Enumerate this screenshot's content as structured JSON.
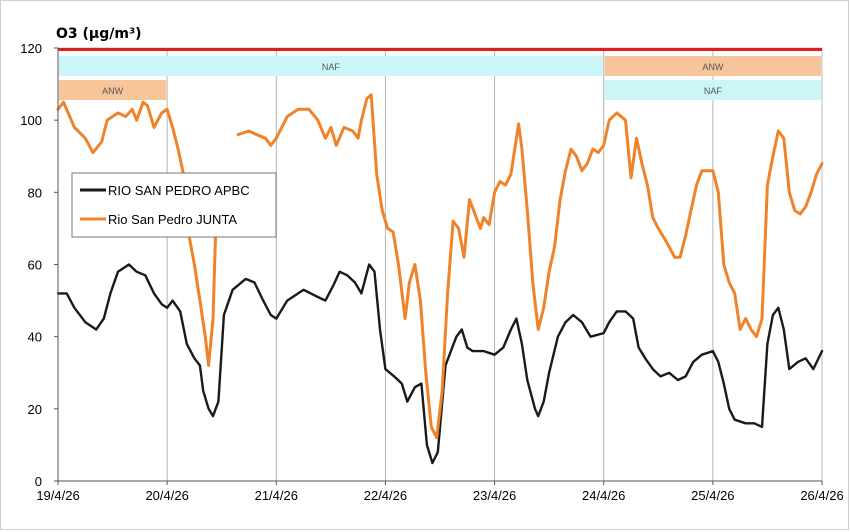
{
  "chart_data": {
    "type": "line",
    "title": "O3  (µg/m³)",
    "xlabel": "",
    "ylabel": "",
    "ylim": [
      0,
      120
    ],
    "yticks": [
      "0",
      "20",
      "40",
      "60",
      "80",
      "100",
      "120"
    ],
    "xticks": [
      "19/4/26",
      "20/4/26",
      "21/4/26",
      "22/4/26",
      "23/4/26",
      "24/4/26",
      "25/4/26",
      "26/4/26"
    ],
    "xlim": [
      0,
      7
    ],
    "grid": "vertical",
    "legend_position": "left",
    "series": [
      {
        "name": "RIO SAN PEDRO APBC",
        "color": "#1a1a1a",
        "points": [
          [
            0,
            52
          ],
          [
            0.08,
            52
          ],
          [
            0.15,
            48
          ],
          [
            0.25,
            44
          ],
          [
            0.35,
            42
          ],
          [
            0.42,
            45
          ],
          [
            0.48,
            52
          ],
          [
            0.55,
            58
          ],
          [
            0.65,
            60
          ],
          [
            0.72,
            58
          ],
          [
            0.8,
            57
          ],
          [
            0.88,
            52
          ],
          [
            0.95,
            49
          ],
          [
            1.0,
            48
          ],
          [
            1.05,
            50
          ],
          [
            1.12,
            47
          ],
          [
            1.18,
            38
          ],
          [
            1.25,
            34
          ],
          [
            1.3,
            32
          ],
          [
            1.33,
            25
          ],
          [
            1.38,
            20
          ],
          [
            1.42,
            18
          ],
          [
            1.47,
            22
          ],
          [
            1.52,
            46
          ],
          [
            1.6,
            53
          ],
          [
            1.72,
            56
          ],
          [
            1.8,
            55
          ],
          [
            1.88,
            50
          ],
          [
            1.95,
            46
          ],
          [
            2.0,
            45
          ],
          [
            2.1,
            50
          ],
          [
            2.25,
            53
          ],
          [
            2.38,
            51
          ],
          [
            2.45,
            50
          ],
          [
            2.52,
            54
          ],
          [
            2.58,
            58
          ],
          [
            2.65,
            57
          ],
          [
            2.72,
            55
          ],
          [
            2.78,
            52
          ],
          [
            2.85,
            60
          ],
          [
            2.9,
            58
          ],
          [
            2.95,
            42
          ],
          [
            3.0,
            31
          ],
          [
            3.08,
            29
          ],
          [
            3.15,
            27
          ],
          [
            3.2,
            22
          ],
          [
            3.27,
            26
          ],
          [
            3.33,
            27
          ],
          [
            3.38,
            10
          ],
          [
            3.43,
            5
          ],
          [
            3.48,
            8
          ],
          [
            3.55,
            32
          ],
          [
            3.6,
            36
          ],
          [
            3.65,
            40
          ],
          [
            3.7,
            42
          ],
          [
            3.75,
            37
          ],
          [
            3.8,
            36
          ],
          [
            3.9,
            36
          ],
          [
            4.0,
            35
          ],
          [
            4.08,
            37
          ],
          [
            4.15,
            42
          ],
          [
            4.2,
            45
          ],
          [
            4.25,
            38
          ],
          [
            4.3,
            28
          ],
          [
            4.37,
            20
          ],
          [
            4.4,
            18
          ],
          [
            4.45,
            22
          ],
          [
            4.5,
            30
          ],
          [
            4.58,
            40
          ],
          [
            4.65,
            44
          ],
          [
            4.72,
            46
          ],
          [
            4.8,
            44
          ],
          [
            4.88,
            40
          ],
          [
            5.0,
            41
          ],
          [
            5.05,
            44
          ],
          [
            5.12,
            47
          ],
          [
            5.2,
            47
          ],
          [
            5.27,
            45
          ],
          [
            5.32,
            37
          ],
          [
            5.38,
            34
          ],
          [
            5.45,
            31
          ],
          [
            5.52,
            29
          ],
          [
            5.6,
            30
          ],
          [
            5.68,
            28
          ],
          [
            5.75,
            29
          ],
          [
            5.82,
            33
          ],
          [
            5.9,
            35
          ],
          [
            6.0,
            36
          ],
          [
            6.05,
            33
          ],
          [
            6.1,
            27
          ],
          [
            6.15,
            20
          ],
          [
            6.2,
            17
          ],
          [
            6.3,
            16
          ],
          [
            6.38,
            16
          ],
          [
            6.45,
            15
          ],
          [
            6.5,
            38
          ],
          [
            6.55,
            46
          ],
          [
            6.6,
            48
          ],
          [
            6.65,
            42
          ],
          [
            6.7,
            31
          ],
          [
            6.78,
            33
          ],
          [
            6.85,
            34
          ],
          [
            6.92,
            31
          ],
          [
            7.0,
            36
          ]
        ]
      },
      {
        "name": "Rio San Pedro JUNTA",
        "color": "#f0832a",
        "points": [
          [
            0,
            103
          ],
          [
            0.05,
            105
          ],
          [
            0.15,
            98
          ],
          [
            0.25,
            95
          ],
          [
            0.32,
            91
          ],
          [
            0.4,
            94
          ],
          [
            0.45,
            100
          ],
          [
            0.55,
            102
          ],
          [
            0.62,
            101
          ],
          [
            0.68,
            103
          ],
          [
            0.72,
            100
          ],
          [
            0.78,
            105
          ],
          [
            0.82,
            104
          ],
          [
            0.88,
            98
          ],
          [
            0.95,
            102
          ],
          [
            1.0,
            103
          ],
          [
            1.05,
            98
          ],
          [
            1.1,
            92
          ],
          [
            1.15,
            85
          ],
          [
            1.2,
            68
          ],
          [
            1.25,
            60
          ],
          [
            1.3,
            50
          ],
          [
            1.35,
            40
          ],
          [
            1.38,
            32
          ],
          [
            1.42,
            45
          ],
          [
            1.45,
            75
          ],
          [
            1.48,
            78
          ],
          [
            null,
            null
          ],
          [
            1.65,
            96
          ],
          [
            1.75,
            97
          ],
          [
            1.82,
            96
          ],
          [
            1.9,
            95
          ],
          [
            1.95,
            93
          ],
          [
            2.0,
            95
          ],
          [
            2.1,
            101
          ],
          [
            2.2,
            103
          ],
          [
            2.3,
            103
          ],
          [
            2.38,
            100
          ],
          [
            2.45,
            95
          ],
          [
            2.5,
            98
          ],
          [
            2.55,
            93
          ],
          [
            2.62,
            98
          ],
          [
            2.7,
            97
          ],
          [
            2.75,
            95
          ],
          [
            2.78,
            100
          ],
          [
            2.83,
            106
          ],
          [
            2.87,
            107
          ],
          [
            2.92,
            85
          ],
          [
            2.97,
            75
          ],
          [
            3.02,
            70
          ],
          [
            3.07,
            69
          ],
          [
            3.12,
            60
          ],
          [
            3.18,
            45
          ],
          [
            3.22,
            55
          ],
          [
            3.27,
            60
          ],
          [
            3.32,
            50
          ],
          [
            3.37,
            30
          ],
          [
            3.42,
            15
          ],
          [
            3.47,
            12
          ],
          [
            3.52,
            25
          ],
          [
            3.57,
            52
          ],
          [
            3.62,
            72
          ],
          [
            3.67,
            70
          ],
          [
            3.72,
            62
          ],
          [
            3.77,
            78
          ],
          [
            3.82,
            74
          ],
          [
            3.87,
            70
          ],
          [
            3.9,
            73
          ],
          [
            3.95,
            71
          ],
          [
            4.0,
            80
          ],
          [
            4.05,
            83
          ],
          [
            4.1,
            82
          ],
          [
            4.15,
            85
          ],
          [
            4.2,
            95
          ],
          [
            4.22,
            99
          ],
          [
            4.25,
            92
          ],
          [
            4.3,
            75
          ],
          [
            4.35,
            55
          ],
          [
            4.4,
            42
          ],
          [
            4.45,
            48
          ],
          [
            4.5,
            58
          ],
          [
            4.55,
            65
          ],
          [
            4.6,
            78
          ],
          [
            4.65,
            86
          ],
          [
            4.7,
            92
          ],
          [
            4.75,
            90
          ],
          [
            4.8,
            86
          ],
          [
            4.85,
            88
          ],
          [
            4.9,
            92
          ],
          [
            4.95,
            91
          ],
          [
            5.0,
            93
          ],
          [
            5.05,
            100
          ],
          [
            5.12,
            102
          ],
          [
            5.2,
            100
          ],
          [
            5.25,
            84
          ],
          [
            5.3,
            95
          ],
          [
            5.35,
            88
          ],
          [
            5.4,
            82
          ],
          [
            5.45,
            73
          ],
          [
            5.5,
            70
          ],
          [
            5.58,
            66
          ],
          [
            5.65,
            62
          ],
          [
            5.7,
            62
          ],
          [
            5.75,
            68
          ],
          [
            5.8,
            75
          ],
          [
            5.85,
            82
          ],
          [
            5.9,
            86
          ],
          [
            6.0,
            86
          ],
          [
            6.05,
            80
          ],
          [
            6.1,
            60
          ],
          [
            6.15,
            55
          ],
          [
            6.2,
            52
          ],
          [
            6.25,
            42
          ],
          [
            6.3,
            45
          ],
          [
            6.35,
            42
          ],
          [
            6.4,
            40
          ],
          [
            6.45,
            45
          ],
          [
            6.5,
            82
          ],
          [
            6.55,
            90
          ],
          [
            6.6,
            97
          ],
          [
            6.65,
            95
          ],
          [
            6.7,
            80
          ],
          [
            6.75,
            75
          ],
          [
            6.8,
            74
          ],
          [
            6.85,
            76
          ],
          [
            6.9,
            80
          ],
          [
            6.95,
            85
          ],
          [
            7.0,
            88
          ]
        ]
      }
    ],
    "bands": [
      {
        "label": "NAF",
        "row": 0,
        "from": 0,
        "to": 5.0,
        "color": "#ccf5f7"
      },
      {
        "label": "ANW",
        "row": 1,
        "from": 0,
        "to": 1.0,
        "color": "#f7c59a"
      },
      {
        "label": "ANW",
        "row": 0,
        "from": 5.0,
        "to": 7.0,
        "color": "#f7c59a"
      },
      {
        "label": "NAF",
        "row": 1,
        "from": 5.0,
        "to": 7.0,
        "color": "#ccf5f7"
      }
    ],
    "top_line_color": "#e02020"
  }
}
